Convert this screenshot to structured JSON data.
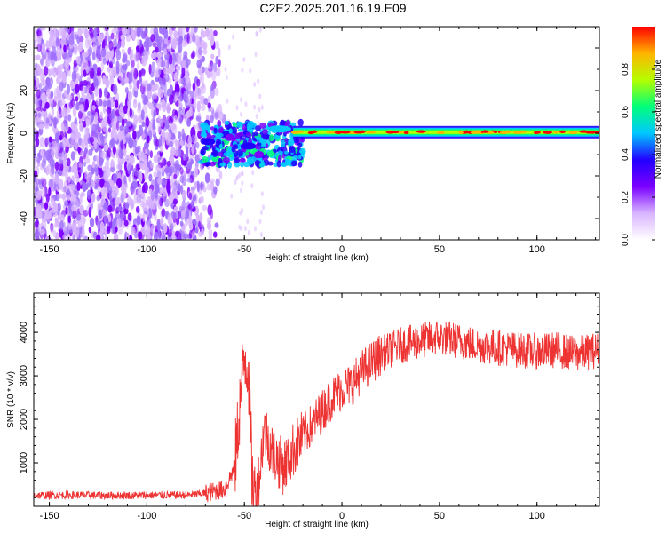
{
  "page_title": "C2E2.2025.201.16.19.E09",
  "colors": {
    "snr_line": "#ee3333",
    "spectrogram_cmap": [
      "#ffffff",
      "#d8b4ff",
      "#7b00ff",
      "#2200ff",
      "#00c8ff",
      "#00ff7a",
      "#b4ff00",
      "#ffb400",
      "#ff0000"
    ]
  },
  "chart_data": [
    {
      "type": "heatmap",
      "title": "C2E2.2025.201.16.19.E09",
      "xlabel": "Height of straight line (km)",
      "ylabel": "Frequency (Hz)",
      "xlim": [
        -158,
        132
      ],
      "ylim": [
        -50,
        50
      ],
      "x_ticks": [
        -150,
        -100,
        -50,
        0,
        50,
        100
      ],
      "y_ticks": [
        -40,
        -20,
        0,
        20,
        40
      ],
      "colorbar": {
        "label": "Normalized spectral amplitude",
        "range": [
          0,
          1
        ],
        "ticks": [
          "0.0",
          "0.2",
          "0.4",
          "0.6",
          "0.8"
        ]
      },
      "regions": [
        {
          "name": "noise",
          "x": [
            -158,
            -60
          ],
          "freq": [
            -50,
            50
          ],
          "amplitude": 0.1
        },
        {
          "name": "signal_onset",
          "x": [
            -72,
            -20
          ],
          "freq": [
            -15,
            5
          ],
          "amplitude": 0.45
        },
        {
          "name": "stable_line",
          "x": [
            -20,
            132
          ],
          "freq": [
            -1.5,
            1.5
          ],
          "amplitude": 0.95
        }
      ],
      "ridge_segments": [
        {
          "x": [
            -72,
            -65
          ],
          "freq": -4,
          "amplitude": 0.35
        },
        {
          "x": [
            -60,
            -55
          ],
          "freq": -2,
          "amplitude": 0.3
        },
        {
          "x": [
            -52,
            -44
          ],
          "freq": -6,
          "amplitude": 0.4
        },
        {
          "x": [
            -45,
            -40
          ],
          "freq": -10,
          "amplitude": 0.3
        },
        {
          "x": [
            -38,
            -26
          ],
          "freq": 2,
          "amplitude": 0.45
        },
        {
          "x": [
            -25,
            132
          ],
          "freq": 0.5,
          "amplitude": 0.95
        }
      ]
    },
    {
      "type": "line",
      "xlabel": "Height of straight line (km)",
      "ylabel": "SNR (10 * v/v)",
      "xlim": [
        -158,
        132
      ],
      "ylim": [
        0,
        4900
      ],
      "x_ticks": [
        -150,
        -100,
        -50,
        0,
        50,
        100
      ],
      "y_ticks": [
        1000,
        2000,
        3000,
        4000
      ],
      "series": [
        {
          "x": [
            -158,
            -140,
            -120,
            -100,
            -80,
            -70,
            -60,
            -55,
            -52,
            -50,
            -48,
            -46,
            -44,
            -42,
            -40,
            -35,
            -30,
            -25,
            -20,
            -15,
            -10,
            -5,
            0,
            5,
            10,
            15,
            20,
            30,
            40,
            50,
            60,
            70,
            80,
            90,
            100,
            110,
            120,
            132
          ],
          "y": [
            250,
            260,
            250,
            255,
            260,
            300,
            400,
            900,
            2500,
            3500,
            3200,
            600,
            300,
            800,
            1800,
            1200,
            900,
            1300,
            1600,
            1900,
            2200,
            2500,
            2700,
            2800,
            3100,
            3300,
            3500,
            3700,
            3800,
            3900,
            3800,
            3700,
            3650,
            3600,
            3550,
            3600,
            3500,
            3600
          ]
        }
      ],
      "noise": [
        {
          "x": [
            -158,
            -70
          ],
          "amp": 90
        },
        {
          "x": [
            -70,
            -55
          ],
          "amp": 220
        },
        {
          "x": [
            -55,
            -45
          ],
          "amp": 900
        },
        {
          "x": [
            -45,
            -20
          ],
          "amp": 650
        },
        {
          "x": [
            -20,
            20
          ],
          "amp": 500
        },
        {
          "x": [
            20,
            132
          ],
          "amp": 420
        }
      ]
    }
  ]
}
